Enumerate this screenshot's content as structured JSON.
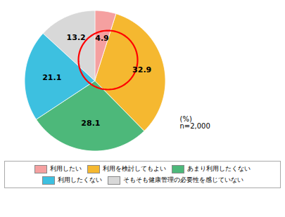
{
  "chart_data": {
    "type": "pie",
    "categories": [
      "利用したい",
      "利用を検討してもよい",
      "あまり利用したくない",
      "利用したくない",
      "そもそも健康管理の必要性を感じていない"
    ],
    "values": [
      4.9,
      32.9,
      28.1,
      21.1,
      13.2
    ],
    "colors": [
      "#f5a0a0",
      "#f5b830",
      "#4db87a",
      "#3dc0e0",
      "#d8d8d8"
    ],
    "data_labels": true,
    "annotation": "(%)\nn=2,000",
    "legend": "bottom"
  }
}
